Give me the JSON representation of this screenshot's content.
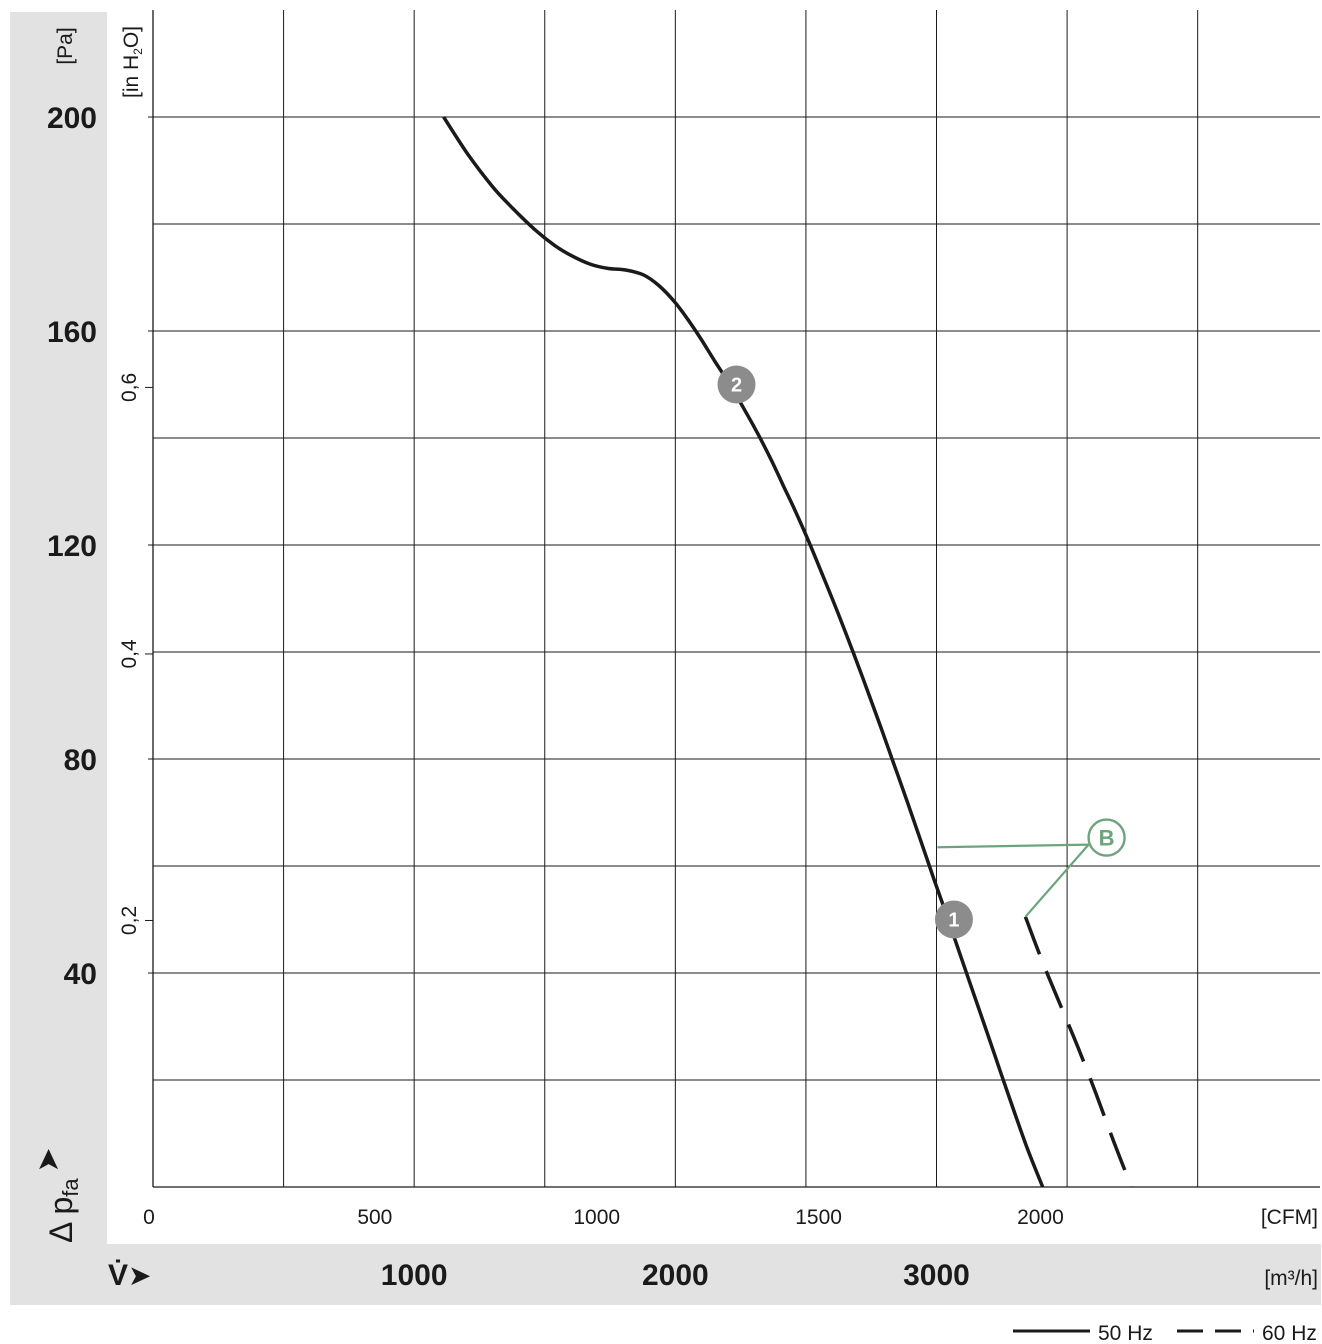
{
  "chart_data": {
    "type": "line",
    "x_axis": {
      "unit": "[CFM]",
      "range": [
        0,
        2630
      ],
      "ticks": [
        {
          "value": 0,
          "label": "0"
        },
        {
          "value": 500,
          "label": "500"
        },
        {
          "value": 1000,
          "label": "1000"
        },
        {
          "value": 1500,
          "label": "1500"
        },
        {
          "value": 2000,
          "label": "2000"
        }
      ]
    },
    "x_axis_secondary": {
      "symbol": "V̇",
      "unit": "[m³/h]",
      "ticks": [
        {
          "value": 1000,
          "label": "1000"
        },
        {
          "value": 2000,
          "label": "2000"
        },
        {
          "value": 3000,
          "label": "3000"
        }
      ]
    },
    "y_axis": {
      "symbol": "Δ p",
      "subscript": "fa",
      "unit": "[Pa]",
      "range": [
        0,
        220
      ],
      "ticks": [
        {
          "value": 40,
          "label": "40"
        },
        {
          "value": 80,
          "label": "80"
        },
        {
          "value": 120,
          "label": "120"
        },
        {
          "value": 160,
          "label": "160"
        },
        {
          "value": 200,
          "label": "200"
        }
      ]
    },
    "y_axis_secondary": {
      "unit_parts": [
        "[in H",
        "2",
        "O]"
      ],
      "ticks": [
        {
          "value": 0.2,
          "label": "0,2"
        },
        {
          "value": 0.4,
          "label": "0,4"
        },
        {
          "value": 0.6,
          "label": "0,6"
        }
      ]
    },
    "grid": true,
    "series": [
      {
        "name": "50 Hz",
        "style": "solid",
        "x": [
          655,
          710,
          765,
          810,
          860,
          905,
          945,
          985,
          1025,
          1065,
          1105,
          1140,
          1175,
          1205,
          1235,
          1265,
          1300,
          1335,
          1365,
          1395,
          1425,
          1445,
          1475,
          1510,
          1545,
          1580,
          1610,
          1640,
          1670,
          1700,
          1730,
          1760,
          1790,
          1820,
          1850,
          1880,
          1910,
          1940,
          1970,
          2005
        ],
        "y": [
          200,
          193,
          187,
          183,
          179,
          176,
          174,
          172.5,
          171.7,
          171.4,
          170.5,
          168.5,
          165.5,
          162.2,
          158.5,
          154.5,
          150,
          145,
          140.5,
          135.6,
          130.3,
          126.8,
          121.2,
          114.2,
          107,
          99.5,
          92.8,
          86,
          79,
          72,
          64.8,
          57.5,
          50.5,
          43.2,
          36,
          28.8,
          21.5,
          14.3,
          7.3,
          0
        ]
      },
      {
        "name": "60 Hz",
        "style": "dashed",
        "x": [
          1966,
          2005,
          2045,
          2085,
          2125,
          2165,
          2205
        ],
        "y": [
          50.5,
          42,
          34,
          26,
          17.5,
          8.5,
          0
        ]
      }
    ],
    "markers": [
      {
        "label": "2",
        "x": 1315,
        "y": 150
      },
      {
        "label": "1",
        "x": 1805,
        "y": 50
      }
    ],
    "annotations": [
      {
        "label": "B",
        "color": "#6ea47c",
        "anchor": {
          "x": 2140,
          "y": 64
        },
        "pointers": [
          {
            "x": 1768,
            "y": 63.5
          },
          {
            "x": 1966,
            "y": 50.5
          }
        ]
      }
    ],
    "legend": {
      "placement": "bottom-right",
      "entries": [
        {
          "name": "50 Hz",
          "style": "solid"
        },
        {
          "name": "60 Hz",
          "style": "dashed"
        }
      ]
    },
    "colors": {
      "series": "#1a1a1a",
      "marker_fill": "#8c8c8c",
      "annotation": "#6ea47c",
      "band": "#e2e2e2",
      "grid": "#1a1a1a"
    }
  }
}
